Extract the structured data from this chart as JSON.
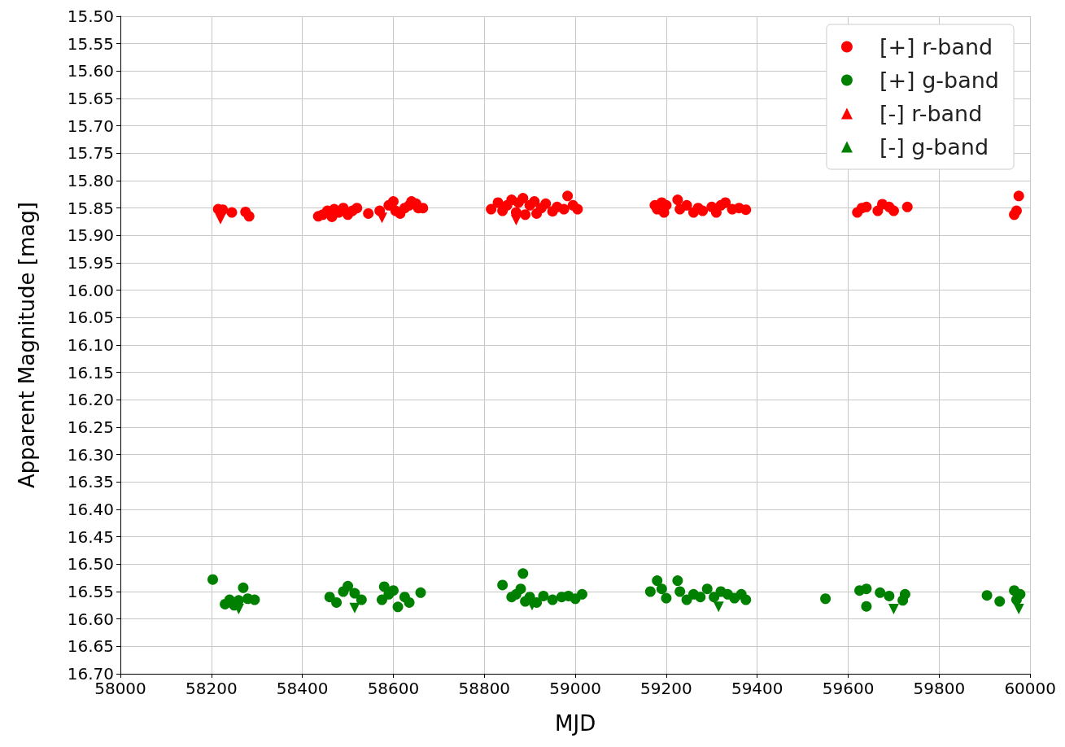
{
  "chart_data": {
    "type": "scatter",
    "xlabel": "MJD",
    "ylabel": "Apparent Magnitude [mag]",
    "xlim": [
      58000,
      60000
    ],
    "xticks": [
      58000,
      58200,
      58400,
      58600,
      58800,
      59000,
      59200,
      59400,
      59600,
      59800,
      60000
    ],
    "ylim": [
      16.7,
      15.5
    ],
    "yticks": [
      {
        "value": 15.5,
        "label": "15.50"
      },
      {
        "value": 15.55,
        "label": "15.55"
      },
      {
        "value": 15.6,
        "label": "15.60"
      },
      {
        "value": 15.65,
        "label": "15.65"
      },
      {
        "value": 15.7,
        "label": "15.70"
      },
      {
        "value": 15.75,
        "label": "15.75"
      },
      {
        "value": 15.8,
        "label": "15.80"
      },
      {
        "value": 15.85,
        "label": "15.85"
      },
      {
        "value": 15.9,
        "label": "15.90"
      },
      {
        "value": 15.95,
        "label": "15.95"
      },
      {
        "value": 16.0,
        "label": "16.00"
      },
      {
        "value": 16.05,
        "label": "16.05"
      },
      {
        "value": 16.1,
        "label": "16.10"
      },
      {
        "value": 16.15,
        "label": "16.15"
      },
      {
        "value": 16.2,
        "label": "16.20"
      },
      {
        "value": 16.25,
        "label": "16.25"
      },
      {
        "value": 16.3,
        "label": "16.30"
      },
      {
        "value": 16.35,
        "label": "16.35"
      },
      {
        "value": 16.4,
        "label": "16.40"
      },
      {
        "value": 16.45,
        "label": "16.45"
      },
      {
        "value": 16.5,
        "label": "16.50"
      },
      {
        "value": 16.55,
        "label": "16.55"
      },
      {
        "value": 16.6,
        "label": "16.60"
      },
      {
        "value": 16.65,
        "label": "16.65"
      },
      {
        "value": 16.7,
        "label": "16.70"
      }
    ],
    "grid": true,
    "legend": "top right",
    "series": [
      {
        "name": "[+] r-band",
        "color": "#ff0000",
        "marker": "circle",
        "x": [
          58215,
          58225,
          58245,
          58275,
          58283,
          58435,
          58445,
          58455,
          58465,
          58470,
          58480,
          58490,
          58500,
          58510,
          58520,
          58545,
          58570,
          58590,
          58600,
          58605,
          58615,
          58625,
          58635,
          58640,
          58650,
          58655,
          58665,
          58815,
          58830,
          58840,
          58850,
          58860,
          58870,
          58875,
          58885,
          58890,
          58900,
          58910,
          58915,
          58925,
          58935,
          58950,
          58960,
          58975,
          58983,
          58995,
          59005,
          59175,
          59180,
          59190,
          59195,
          59200,
          59225,
          59230,
          59245,
          59260,
          59270,
          59280,
          59300,
          59310,
          59320,
          59330,
          59345,
          59360,
          59375,
          59620,
          59630,
          59640,
          59665,
          59675,
          59690,
          59700,
          59730,
          59965,
          59970,
          59975
        ],
        "values": [
          15.852,
          15.853,
          15.858,
          15.857,
          15.865,
          15.865,
          15.862,
          15.855,
          15.866,
          15.852,
          15.858,
          15.85,
          15.862,
          15.855,
          15.85,
          15.86,
          15.855,
          15.845,
          15.838,
          15.855,
          15.86,
          15.85,
          15.845,
          15.838,
          15.842,
          15.85,
          15.85,
          15.852,
          15.84,
          15.855,
          15.845,
          15.835,
          15.858,
          15.84,
          15.832,
          15.862,
          15.845,
          15.838,
          15.86,
          15.85,
          15.842,
          15.856,
          15.848,
          15.852,
          15.828,
          15.845,
          15.852,
          15.845,
          15.852,
          15.84,
          15.858,
          15.845,
          15.835,
          15.852,
          15.845,
          15.858,
          15.85,
          15.855,
          15.848,
          15.858,
          15.845,
          15.84,
          15.852,
          15.85,
          15.853,
          15.858,
          15.85,
          15.848,
          15.855,
          15.843,
          15.848,
          15.855,
          15.848,
          15.862,
          15.855,
          15.828
        ]
      },
      {
        "name": "[+] g-band",
        "color": "#008000",
        "marker": "circle",
        "x": [
          58203,
          58230,
          58240,
          58250,
          58260,
          58270,
          58280,
          58295,
          58460,
          58475,
          58490,
          58500,
          58515,
          58530,
          58575,
          58580,
          58590,
          58600,
          58610,
          58625,
          58635,
          58660,
          58840,
          58860,
          58870,
          58880,
          58885,
          58890,
          58900,
          58915,
          58930,
          58950,
          58970,
          58985,
          59000,
          59015,
          59165,
          59180,
          59190,
          59200,
          59225,
          59230,
          59245,
          59260,
          59275,
          59290,
          59305,
          59320,
          59335,
          59350,
          59365,
          59375,
          59550,
          59625,
          59640,
          59640,
          59670,
          59690,
          59720,
          59725,
          59905,
          59933,
          59965,
          59970,
          59978
        ],
        "values": [
          16.528,
          16.573,
          16.565,
          16.575,
          16.566,
          16.543,
          16.563,
          16.565,
          16.56,
          16.57,
          16.55,
          16.54,
          16.553,
          16.565,
          16.565,
          16.541,
          16.555,
          16.548,
          16.578,
          16.56,
          16.57,
          16.552,
          16.538,
          16.56,
          16.555,
          16.545,
          16.517,
          16.568,
          16.56,
          16.57,
          16.558,
          16.565,
          16.56,
          16.558,
          16.563,
          16.555,
          16.55,
          16.53,
          16.545,
          16.562,
          16.53,
          16.55,
          16.565,
          16.555,
          16.56,
          16.545,
          16.56,
          16.55,
          16.555,
          16.562,
          16.555,
          16.565,
          16.563,
          16.548,
          16.545,
          16.577,
          16.552,
          16.558,
          16.566,
          16.555,
          16.557,
          16.568,
          16.548,
          16.565,
          16.555
        ]
      },
      {
        "name": "[-] r-band",
        "color": "#ff0000",
        "marker": "triangle",
        "x": [
          58220,
          58575,
          58870
        ],
        "values": [
          15.87,
          15.868,
          15.872
        ]
      },
      {
        "name": "[-] g-band",
        "color": "#008000",
        "marker": "triangle",
        "x": [
          58260,
          58515,
          58905,
          59315,
          59700,
          59975
        ],
        "values": [
          16.582,
          16.58,
          16.575,
          16.578,
          16.582,
          16.582
        ]
      }
    ]
  }
}
